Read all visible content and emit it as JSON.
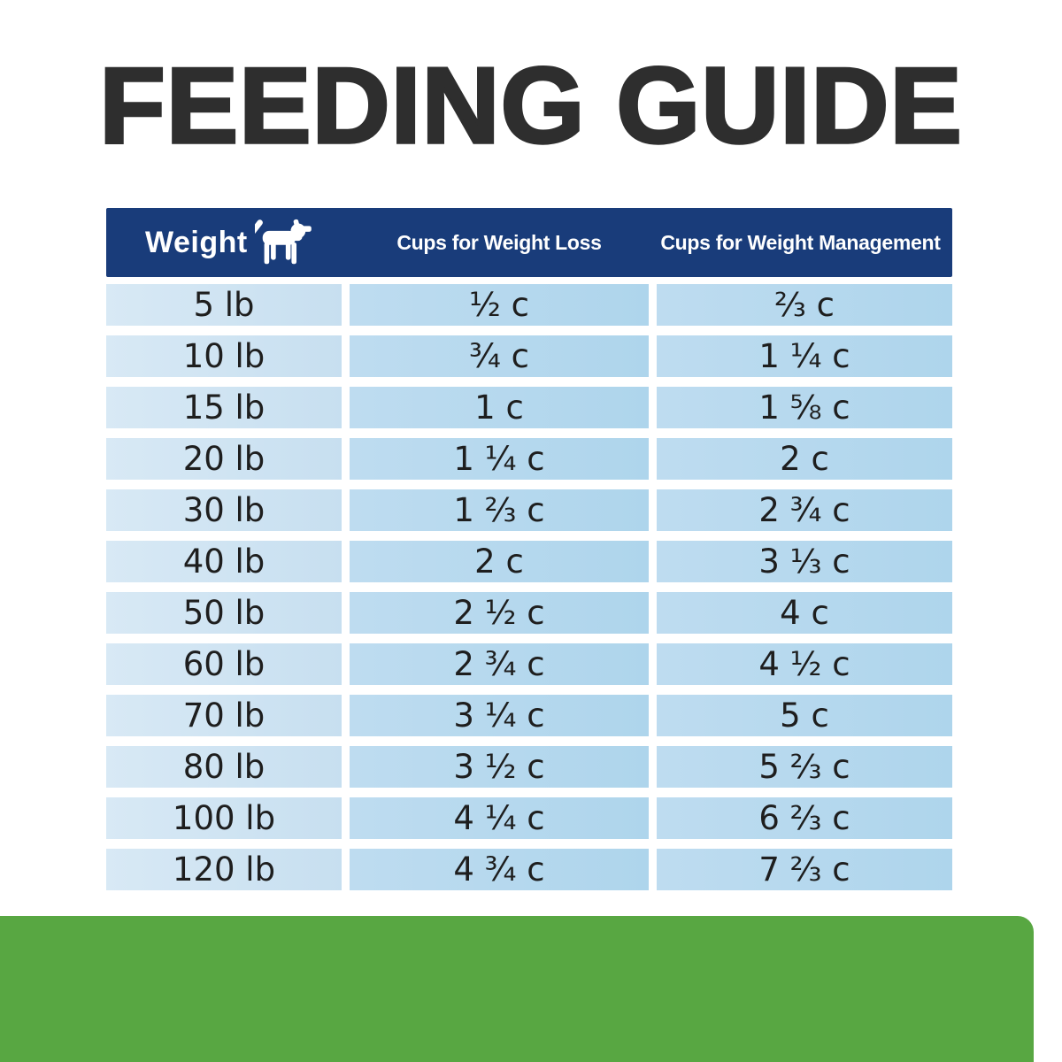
{
  "title": "FEEDING GUIDE",
  "colors": {
    "header_bg": "#193c7a",
    "weight_col_bg": "#cfe4f2",
    "cups_col_bg": "#b3d8ee",
    "green_bar": "#58a742",
    "title_color": "#2e2e2e",
    "header_text": "#ffffff",
    "cell_text": "#1e1e1e"
  },
  "icons": {
    "dog": "dog-silhouette-icon"
  },
  "chart_data": {
    "type": "table",
    "title": "FEEDING GUIDE",
    "columns": [
      "Weight",
      "Cups for Weight Loss",
      "Cups for Weight Management"
    ],
    "rows": [
      [
        "5 lb",
        "½ c",
        "⅔ c"
      ],
      [
        "10 lb",
        "¾ c",
        "1 ¼ c"
      ],
      [
        "15 lb",
        "1 c",
        "1 ⅝ c"
      ],
      [
        "20 lb",
        "1 ¼ c",
        "2 c"
      ],
      [
        "30 lb",
        "1 ⅔ c",
        "2 ¾ c"
      ],
      [
        "40 lb",
        "2 c",
        "3 ⅓ c"
      ],
      [
        "50 lb",
        "2 ½ c",
        "4 c"
      ],
      [
        "60 lb",
        "2 ¾ c",
        "4 ½ c"
      ],
      [
        "70 lb",
        "3 ¼ c",
        "5 c"
      ],
      [
        "80 lb",
        "3 ½ c",
        "5 ⅔ c"
      ],
      [
        "100 lb",
        "4 ¼ c",
        "6 ⅔ c"
      ],
      [
        "120 lb",
        "4 ¾ c",
        "7 ⅔ c"
      ]
    ]
  }
}
